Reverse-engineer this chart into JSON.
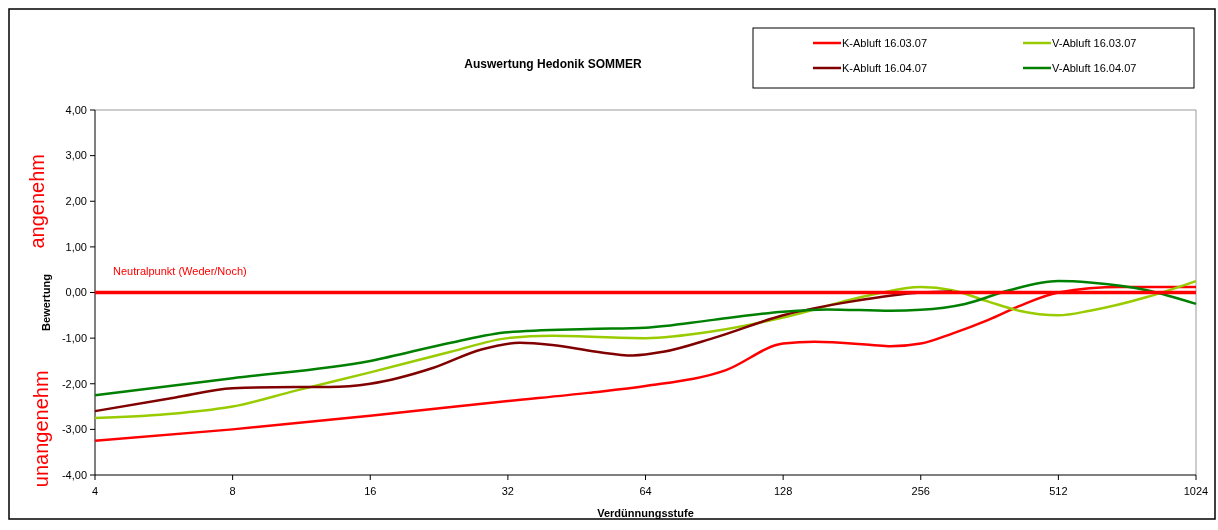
{
  "chart_data": {
    "type": "line",
    "title": "Auswertung Hedonik SOMMER",
    "xlabel": "Verdünnungsstufe",
    "ylabel": "Bewertung",
    "log": "x",
    "xlim": [
      4,
      1024
    ],
    "xticks": [
      4,
      8,
      16,
      32,
      64,
      128,
      256,
      512,
      1024
    ],
    "ylim": [
      -4,
      4
    ],
    "yticks": [
      {
        "value": -4,
        "label": "-4,00"
      },
      {
        "value": -3,
        "label": "-3,00"
      },
      {
        "value": -2,
        "label": "-2,00"
      },
      {
        "value": -1,
        "label": "-1,00"
      },
      {
        "value": 0,
        "label": "0,00"
      },
      {
        "value": 1,
        "label": "1,00"
      },
      {
        "value": 2,
        "label": "2,00"
      },
      {
        "value": 3,
        "label": "3,00"
      },
      {
        "value": 4,
        "label": "4,00"
      }
    ],
    "grid": false,
    "legend": "top right",
    "marker": "none",
    "line_style": "solid",
    "ref_lines": [
      {
        "axis": "y",
        "value": 0,
        "label": "Neutralpunkt (Weder/Noch)",
        "color": "#ff0000"
      }
    ],
    "annotations": [
      "angenehm",
      "unangenehm"
    ],
    "series": [
      {
        "name": "K-Abluft 16.03.07",
        "color": "#ff0000",
        "x": [
          4,
          8,
          16,
          32,
          48,
          64,
          96,
          128,
          150,
          200,
          220,
          256,
          300,
          360,
          420,
          512,
          700,
          1024
        ],
        "values": [
          -3.25,
          -3.0,
          -2.7,
          -2.38,
          -2.2,
          -2.05,
          -1.7,
          -1.12,
          -1.08,
          -1.15,
          -1.18,
          -1.12,
          -0.9,
          -0.6,
          -0.3,
          0.0,
          0.12,
          0.12
        ]
      },
      {
        "name": "V-Abluft 16.03.07",
        "color": "#99cc00",
        "x": [
          4,
          6,
          8,
          11,
          16,
          24,
          32,
          40,
          64,
          90,
          128,
          200,
          256,
          300,
          360,
          420,
          512,
          600,
          800,
          1024
        ],
        "values": [
          -2.75,
          -2.65,
          -2.5,
          -2.15,
          -1.75,
          -1.3,
          -1.0,
          -0.95,
          -1.0,
          -0.85,
          -0.55,
          -0.05,
          0.12,
          0.05,
          -0.2,
          -0.4,
          -0.5,
          -0.4,
          -0.1,
          0.25
        ]
      },
      {
        "name": "K-Abluft 16.04.07",
        "color": "#800000",
        "x": [
          4,
          6,
          8,
          11,
          13,
          16,
          22,
          28,
          34,
          40,
          50,
          60,
          70,
          90,
          128,
          180,
          256,
          300
        ],
        "values": [
          -2.6,
          -2.3,
          -2.1,
          -2.07,
          -2.07,
          -2.0,
          -1.65,
          -1.25,
          -1.1,
          -1.15,
          -1.3,
          -1.38,
          -1.3,
          -1.0,
          -0.5,
          -0.2,
          0.0,
          0.02
        ]
      },
      {
        "name": "V-Abluft 16.04.07",
        "color": "#008000",
        "x": [
          4,
          8,
          16,
          24,
          32,
          48,
          64,
          90,
          128,
          160,
          220,
          256,
          320,
          400,
          512,
          600,
          800,
          1024
        ],
        "values": [
          -2.25,
          -1.88,
          -1.5,
          -1.1,
          -0.87,
          -0.8,
          -0.77,
          -0.6,
          -0.42,
          -0.37,
          -0.4,
          -0.38,
          -0.25,
          0.05,
          0.25,
          0.22,
          0.05,
          -0.25
        ]
      }
    ]
  }
}
